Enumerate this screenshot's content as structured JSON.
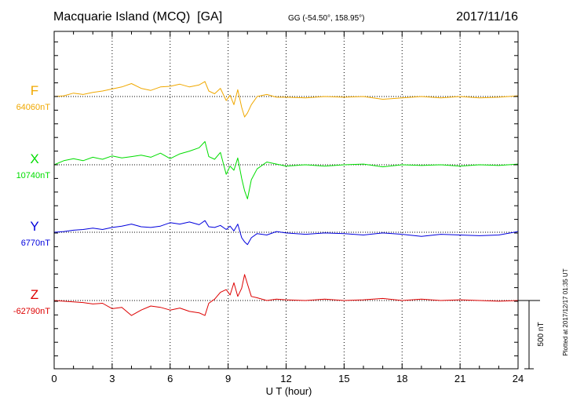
{
  "header": {
    "station": "Macquarie Island (MCQ)  [GA]",
    "coords": "GG (-54.50°, 158.95°)",
    "date": "2017/11/16"
  },
  "footer_note": "Plotted at 2017/12/17 01:35 UT",
  "scale_label": "500 nT",
  "chart_data": {
    "type": "line",
    "xlabel": "U T (hour)",
    "xlim": [
      0,
      24
    ],
    "x_ticks": [
      "0",
      "3",
      "6",
      "9",
      "12",
      "15",
      "18",
      "21",
      "24"
    ],
    "grid": true,
    "scale_nT": 500,
    "series": [
      {
        "name": "F",
        "baseline_label": "64060nT",
        "color": "#f0a800",
        "x": [
          0,
          0.5,
          1,
          1.5,
          2,
          2.5,
          3,
          3.5,
          4,
          4.5,
          5,
          5.5,
          6,
          6.5,
          7,
          7.5,
          7.8,
          8,
          8.3,
          8.6,
          8.9,
          9.1,
          9.3,
          9.5,
          9.7,
          9.85,
          10,
          10.2,
          10.5,
          11,
          11.5,
          12,
          13,
          14,
          15,
          16,
          17,
          18,
          19,
          20,
          21,
          22,
          23,
          24
        ],
        "values": [
          0,
          5,
          25,
          15,
          30,
          40,
          55,
          70,
          95,
          60,
          45,
          70,
          75,
          90,
          70,
          85,
          110,
          40,
          20,
          60,
          -30,
          10,
          -60,
          50,
          -80,
          -150,
          -120,
          -60,
          0,
          15,
          -5,
          -5,
          -10,
          0,
          -5,
          0,
          -20,
          -10,
          0,
          -10,
          0,
          -10,
          -5,
          5
        ]
      },
      {
        "name": "X",
        "baseline_label": "10740nT",
        "color": "#00dd00",
        "x": [
          0,
          0.5,
          1,
          1.5,
          2,
          2.5,
          3,
          3.5,
          4,
          4.5,
          5,
          5.5,
          6,
          6.5,
          7,
          7.5,
          7.8,
          8,
          8.3,
          8.6,
          8.9,
          9.1,
          9.3,
          9.5,
          9.7,
          9.85,
          10,
          10.2,
          10.5,
          11,
          11.5,
          12,
          13,
          14,
          15,
          16,
          17,
          18,
          19,
          20,
          21,
          22,
          23,
          24
        ],
        "values": [
          0,
          30,
          45,
          30,
          55,
          40,
          65,
          50,
          60,
          70,
          55,
          85,
          45,
          80,
          100,
          125,
          170,
          60,
          40,
          90,
          -70,
          -10,
          -40,
          50,
          -100,
          -190,
          -250,
          -110,
          -30,
          20,
          5,
          -10,
          0,
          -10,
          0,
          5,
          -15,
          0,
          -5,
          0,
          -10,
          0,
          -5,
          5
        ]
      },
      {
        "name": "Y",
        "baseline_label": "6770nT",
        "color": "#0000dd",
        "x": [
          0,
          0.5,
          1,
          1.5,
          2,
          2.5,
          3,
          3.5,
          4,
          4.5,
          5,
          5.5,
          6,
          6.5,
          7,
          7.5,
          7.8,
          8,
          8.3,
          8.6,
          8.9,
          9.1,
          9.3,
          9.5,
          9.7,
          9.85,
          10,
          10.2,
          10.5,
          11,
          11.5,
          12,
          13,
          14,
          15,
          16,
          17,
          18,
          19,
          20,
          21,
          22,
          23,
          24
        ],
        "values": [
          0,
          5,
          15,
          20,
          30,
          20,
          35,
          45,
          60,
          40,
          35,
          45,
          70,
          60,
          75,
          55,
          85,
          40,
          35,
          50,
          20,
          45,
          10,
          60,
          -40,
          -70,
          -90,
          -40,
          -10,
          -20,
          5,
          -5,
          -15,
          -5,
          -10,
          -20,
          -5,
          -15,
          -30,
          -15,
          -20,
          -25,
          -20,
          5
        ]
      },
      {
        "name": "Z",
        "baseline_label": "-62790nT",
        "color": "#dd0000",
        "x": [
          0,
          0.5,
          1,
          1.5,
          2,
          2.5,
          3,
          3.5,
          4,
          4.5,
          5,
          5.5,
          6,
          6.5,
          7,
          7.5,
          7.8,
          8,
          8.3,
          8.6,
          8.9,
          9.1,
          9.3,
          9.5,
          9.7,
          9.85,
          10,
          10.2,
          10.5,
          11,
          11.5,
          12,
          13,
          14,
          15,
          16,
          17,
          18,
          19,
          20,
          21,
          22,
          23,
          24
        ],
        "values": [
          0,
          -5,
          -10,
          -15,
          -25,
          -20,
          -60,
          -50,
          -110,
          -70,
          -40,
          -50,
          -70,
          -55,
          -80,
          -90,
          -110,
          -20,
          10,
          60,
          80,
          40,
          130,
          30,
          90,
          190,
          120,
          30,
          20,
          0,
          10,
          5,
          0,
          10,
          0,
          5,
          15,
          0,
          10,
          0,
          5,
          0,
          -5,
          0
        ]
      }
    ]
  }
}
